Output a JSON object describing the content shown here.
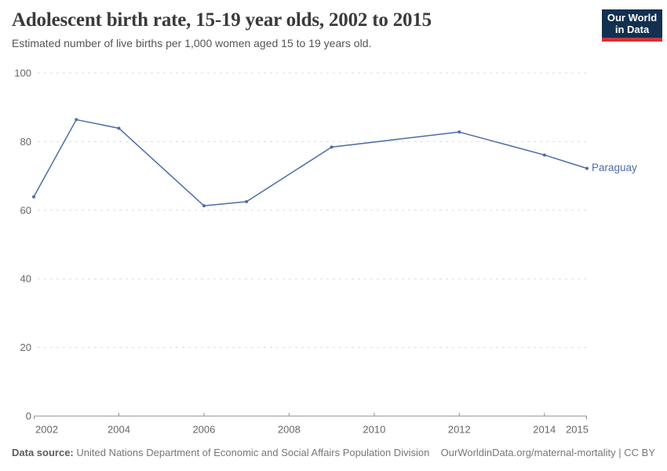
{
  "header": {
    "title": "Adolescent birth rate, 15-19 year olds, 2002 to 2015",
    "subtitle": "Estimated number of live births per 1,000 women aged 15 to 19 years old.",
    "logo": {
      "line1": "Our World",
      "line2": "in Data"
    }
  },
  "chart_data": {
    "type": "line",
    "title": "Adolescent birth rate, 15-19 year olds, 2002 to 2015",
    "series": [
      {
        "name": "Paraguay",
        "color": "#4C6CA8",
        "x": [
          2002,
          2003,
          2004,
          2006,
          2007,
          2009,
          2012,
          2014,
          2015
        ],
        "values": [
          63.9,
          86.4,
          83.9,
          61.3,
          62.5,
          78.4,
          82.8,
          76.1,
          72.2
        ]
      }
    ],
    "xlim": [
      2002,
      2015
    ],
    "ylim": [
      0,
      100
    ],
    "yticks": [
      0,
      20,
      40,
      60,
      80,
      100
    ],
    "xticks": [
      2002,
      2004,
      2006,
      2008,
      2010,
      2012,
      2014,
      2015
    ],
    "grid": "horizontal-dashed",
    "legend_position": "end-of-line-label"
  },
  "footer": {
    "datasource_label": "Data source:",
    "datasource": "United Nations Department of Economic and Social Affairs Population Division",
    "link": "OurWorldinData.org/maternal-mortality | CC BY"
  },
  "colors": {
    "line": "#4C6CA8",
    "grid": "#DCDCDC",
    "axis": "#8F8F8F",
    "tick_label": "#666666",
    "logo_bg": "#12304F",
    "logo_accent": "#CF3339"
  }
}
